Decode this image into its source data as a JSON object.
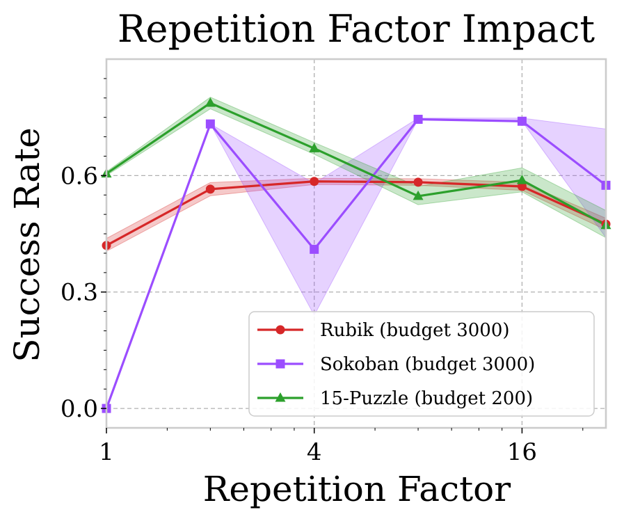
{
  "chart_data": {
    "type": "line",
    "title": "Repetition Factor Impact",
    "xlabel": "Repetition Factor",
    "ylabel": "Success Rate",
    "x_scale": "log2",
    "xlim": [
      1,
      28
    ],
    "ylim": [
      -0.05,
      0.9
    ],
    "xticks": [
      {
        "value": 1,
        "label": "1"
      },
      {
        "value": 4,
        "label": "4"
      },
      {
        "value": 16,
        "label": "16"
      }
    ],
    "yticks": [
      {
        "value": 0.0,
        "label": "0.0"
      },
      {
        "value": 0.3,
        "label": "0.3"
      },
      {
        "value": 0.6,
        "label": "0.6"
      }
    ],
    "grid": true,
    "legend_position": "bottom-right",
    "series": [
      {
        "name": "Rubik (budget 3000)",
        "color": "#d62728",
        "marker": "circle",
        "x": [
          1,
          2,
          4,
          8,
          16,
          28
        ],
        "values": [
          0.42,
          0.565,
          0.585,
          0.583,
          0.572,
          0.475
        ],
        "lower": [
          0.405,
          0.548,
          0.577,
          0.575,
          0.562,
          0.46
        ],
        "upper": [
          0.438,
          0.582,
          0.593,
          0.592,
          0.583,
          0.49
        ]
      },
      {
        "name": "Sokoban (budget 3000)",
        "color": "#9b4dff",
        "marker": "square",
        "x": [
          1,
          2,
          4,
          8,
          16,
          28
        ],
        "values": [
          0.0,
          0.733,
          0.41,
          0.745,
          0.74,
          0.575
        ],
        "lower": [
          0.0,
          0.733,
          0.24,
          0.745,
          0.74,
          0.44
        ],
        "upper": [
          0.0,
          0.733,
          0.58,
          0.748,
          0.748,
          0.72
        ]
      },
      {
        "name": "15-Puzzle (budget 200)",
        "color": "#2ca02c",
        "marker": "triangle",
        "x": [
          1,
          2,
          4,
          8,
          16,
          28
        ],
        "values": [
          0.605,
          0.787,
          0.67,
          0.547,
          0.588,
          0.472
        ],
        "lower": [
          0.6,
          0.772,
          0.655,
          0.525,
          0.558,
          0.44
        ],
        "upper": [
          0.61,
          0.802,
          0.685,
          0.572,
          0.62,
          0.51
        ]
      }
    ]
  }
}
